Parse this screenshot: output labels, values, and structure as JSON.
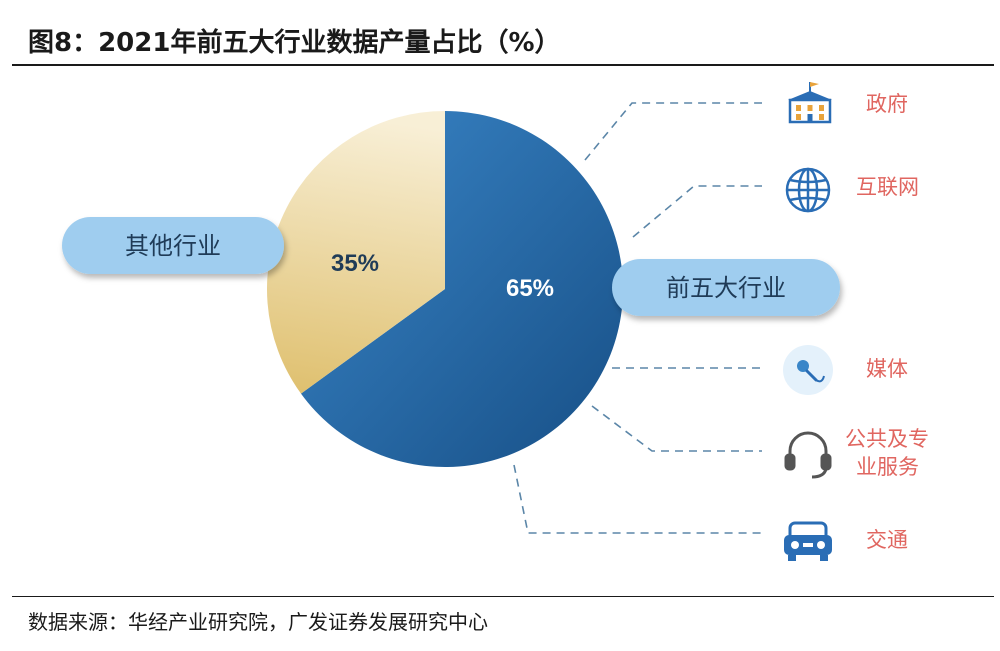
{
  "figure": {
    "title": "图8：2021年前五大行业数据产量占比（%）",
    "source": "数据来源：华经产业研究院，广发证券发展研究中心"
  },
  "chart_data": {
    "type": "pie",
    "title": "2021年前五大行业数据产量占比（%）",
    "slices": [
      {
        "label": "前五大行业",
        "value": 65,
        "display": "65%",
        "color": "#1f66a8"
      },
      {
        "label": "其他行业",
        "value": 35,
        "display": "35%",
        "color": "#ecd89a"
      }
    ],
    "breakdown": {
      "parent": "前五大行业",
      "items": [
        {
          "label": "政府",
          "icon": "government-building-icon"
        },
        {
          "label": "互联网",
          "icon": "globe-icon"
        },
        {
          "label": "媒体",
          "icon": "microphone-icon"
        },
        {
          "label": "公共及专业服务",
          "line1": "公共及专",
          "line2": "业服务",
          "icon": "headset-icon"
        },
        {
          "label": "交通",
          "icon": "car-icon"
        }
      ]
    }
  },
  "colors": {
    "blue_dark": "#174f86",
    "blue_light": "#3a86c8",
    "gold_light": "#f8efd6",
    "gold_dark": "#dfc06f",
    "pill": "#9fcdef",
    "label_red": "#e06660",
    "icon_blue": "#2a6db5"
  }
}
